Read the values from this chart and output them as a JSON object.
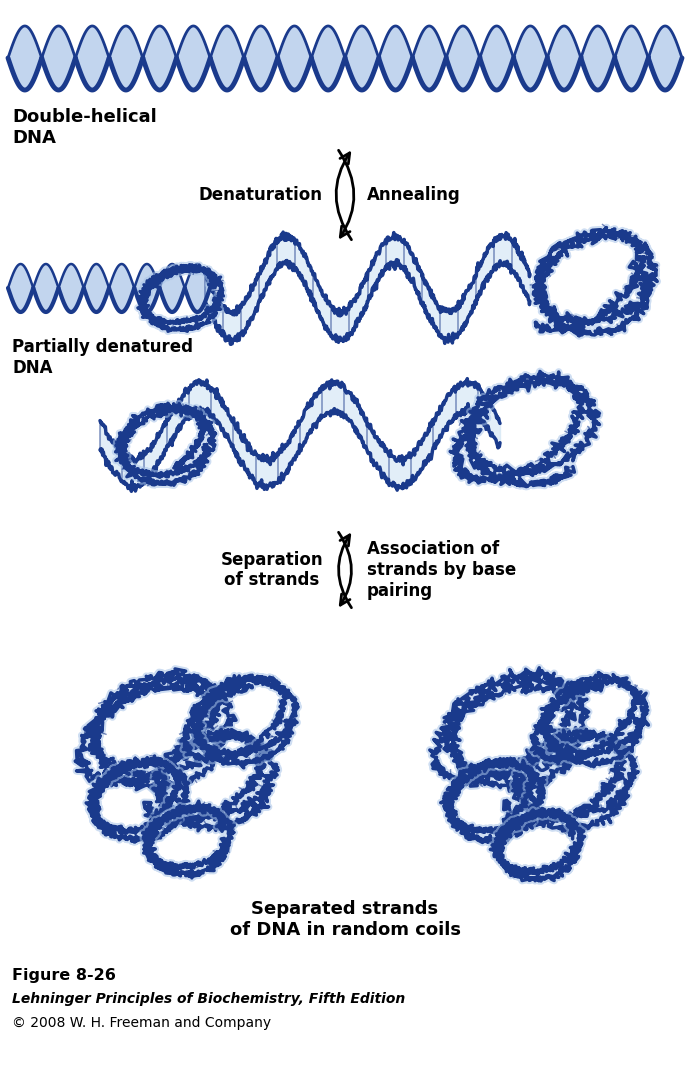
{
  "title": "Figure 8-26",
  "subtitle": "Lehninger Principles of Biochemistry, Fifth Edition",
  "copyright": "© 2008 W. H. Freeman and Company",
  "label_double_helical": "Double-helical\nDNA",
  "label_partially_denatured": "Partially denatured\nDNA",
  "label_denaturation": "Denaturation",
  "label_annealing": "Annealing",
  "label_separation": "Separation\nof strands",
  "label_association": "Association of\nstrands by base\npairing",
  "label_separated": "Separated strands\nof DNA in random coils",
  "bg_color": "#ffffff",
  "text_color": "#000000",
  "dna_dark": "#1a3a8c",
  "dna_mid": "#4a7cc7",
  "dna_light": "#a8c4e8",
  "dna_lighter": "#d0e4f4",
  "fig_width": 6.9,
  "fig_height": 10.72,
  "dpi": 100
}
